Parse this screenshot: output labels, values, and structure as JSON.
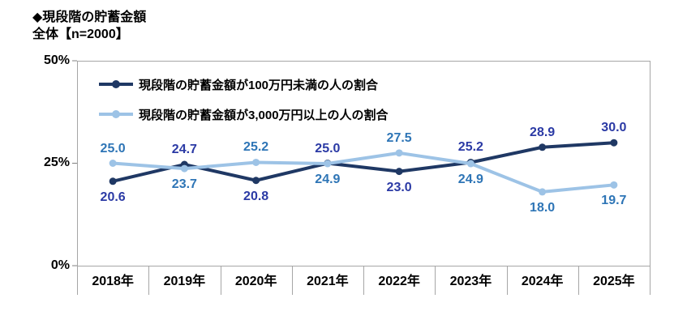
{
  "chart_data": {
    "type": "line",
    "title": "◆現段階の貯蓄金額",
    "subtitle": "全体【n=2000】",
    "categories": [
      "2018年",
      "2019年",
      "2020年",
      "2021年",
      "2022年",
      "2023年",
      "2024年",
      "2025年"
    ],
    "series": [
      {
        "name": "現段階の貯蓄金額が100万円未満の人の割合",
        "values": [
          20.6,
          24.7,
          20.8,
          25.0,
          23.0,
          25.2,
          28.9,
          30.0
        ],
        "color": "#1F3864",
        "label_color": "#2B3AA5",
        "label_side": [
          "below",
          "above",
          "below",
          "above",
          "below",
          "above",
          "above",
          "above"
        ]
      },
      {
        "name": "現段階の貯蓄金額が3,000万円以上の人の割合",
        "values": [
          25.0,
          23.7,
          25.2,
          24.9,
          27.5,
          24.9,
          18.0,
          19.7
        ],
        "color": "#9DC3E6",
        "label_color": "#2E75B6",
        "label_side": [
          "above",
          "below",
          "above",
          "below",
          "above",
          "below",
          "below",
          "below"
        ]
      }
    ],
    "ylim": [
      0,
      50
    ],
    "ytick_labels": [
      "0%",
      "25%",
      "50%"
    ],
    "ytick_values": [
      0,
      25,
      50
    ],
    "grid": false,
    "legend_position": "top-left-inside",
    "frame_color": "#A6A6A6",
    "tick_color": "#808080"
  }
}
